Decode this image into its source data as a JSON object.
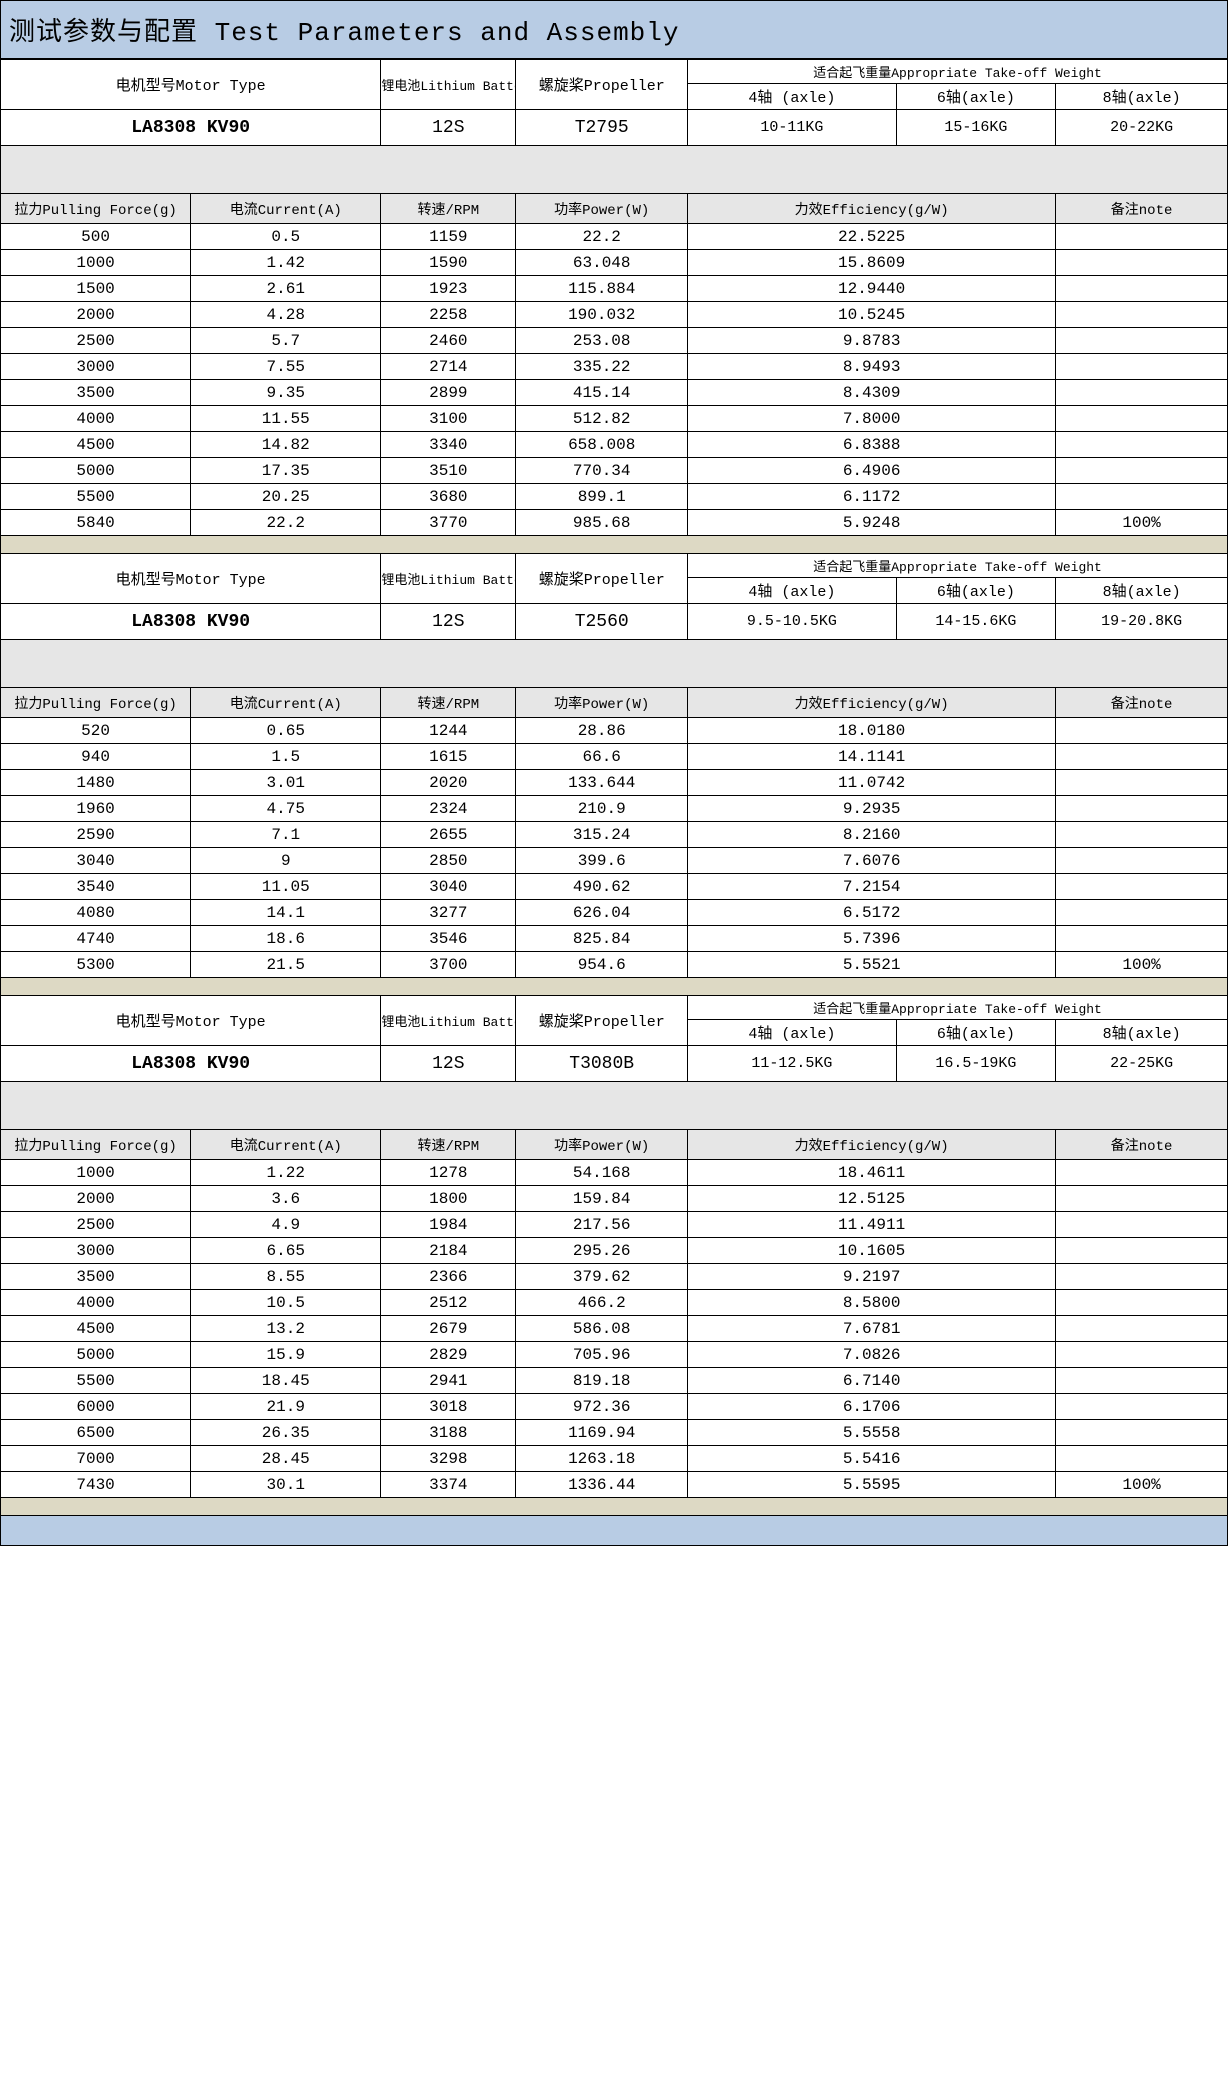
{
  "title": "测试参数与配置 Test Parameters and Assembly",
  "headers": {
    "motor": "电机型号Motor Type",
    "battery": "锂电池Lithium Battery",
    "propeller": "螺旋桨Propeller",
    "takeoff": "适合起飞重量Appropriate Take-off Weight",
    "axle4": "4轴 (axle)",
    "axle6": "6轴(axle)",
    "axle8": "8轴(axle)",
    "pull": "拉力Pulling Force(g)",
    "current": "电流Current(A)",
    "rpm": "转速/RPM",
    "power": "功率Power(W)",
    "eff": "力效Efficiency(g/W)",
    "note": "备注note"
  },
  "sections": [
    {
      "motor": "LA8308 KV90",
      "battery": "12S",
      "propeller": "T2795",
      "axle4": "10-11KG",
      "axle6": "15-16KG",
      "axle8": "20-22KG",
      "rows": [
        [
          "500",
          "0.5",
          "1159",
          "22.2",
          "22.5225",
          ""
        ],
        [
          "1000",
          "1.42",
          "1590",
          "63.048",
          "15.8609",
          ""
        ],
        [
          "1500",
          "2.61",
          "1923",
          "115.884",
          "12.9440",
          ""
        ],
        [
          "2000",
          "4.28",
          "2258",
          "190.032",
          "10.5245",
          ""
        ],
        [
          "2500",
          "5.7",
          "2460",
          "253.08",
          "9.8783",
          ""
        ],
        [
          "3000",
          "7.55",
          "2714",
          "335.22",
          "8.9493",
          ""
        ],
        [
          "3500",
          "9.35",
          "2899",
          "415.14",
          "8.4309",
          ""
        ],
        [
          "4000",
          "11.55",
          "3100",
          "512.82",
          "7.8000",
          ""
        ],
        [
          "4500",
          "14.82",
          "3340",
          "658.008",
          "6.8388",
          ""
        ],
        [
          "5000",
          "17.35",
          "3510",
          "770.34",
          "6.4906",
          ""
        ],
        [
          "5500",
          "20.25",
          "3680",
          "899.1",
          "6.1172",
          ""
        ],
        [
          "5840",
          "22.2",
          "3770",
          "985.68",
          "5.9248",
          "100%"
        ]
      ]
    },
    {
      "motor": "LA8308 KV90",
      "battery": "12S",
      "propeller": "T2560",
      "axle4": "9.5-10.5KG",
      "axle6": "14-15.6KG",
      "axle8": "19-20.8KG",
      "rows": [
        [
          "520",
          "0.65",
          "1244",
          "28.86",
          "18.0180",
          ""
        ],
        [
          "940",
          "1.5",
          "1615",
          "66.6",
          "14.1141",
          ""
        ],
        [
          "1480",
          "3.01",
          "2020",
          "133.644",
          "11.0742",
          ""
        ],
        [
          "1960",
          "4.75",
          "2324",
          "210.9",
          "9.2935",
          ""
        ],
        [
          "2590",
          "7.1",
          "2655",
          "315.24",
          "8.2160",
          ""
        ],
        [
          "3040",
          "9",
          "2850",
          "399.6",
          "7.6076",
          ""
        ],
        [
          "3540",
          "11.05",
          "3040",
          "490.62",
          "7.2154",
          ""
        ],
        [
          "4080",
          "14.1",
          "3277",
          "626.04",
          "6.5172",
          ""
        ],
        [
          "4740",
          "18.6",
          "3546",
          "825.84",
          "5.7396",
          ""
        ],
        [
          "5300",
          "21.5",
          "3700",
          "954.6",
          "5.5521",
          "100%"
        ]
      ]
    },
    {
      "motor": "LA8308 KV90",
      "battery": "12S",
      "propeller": "T3080B",
      "axle4": "11-12.5KG",
      "axle6": "16.5-19KG",
      "axle8": "22-25KG",
      "rows": [
        [
          "1000",
          "1.22",
          "1278",
          "54.168",
          "18.4611",
          ""
        ],
        [
          "2000",
          "3.6",
          "1800",
          "159.84",
          "12.5125",
          ""
        ],
        [
          "2500",
          "4.9",
          "1984",
          "217.56",
          "11.4911",
          ""
        ],
        [
          "3000",
          "6.65",
          "2184",
          "295.26",
          "10.1605",
          ""
        ],
        [
          "3500",
          "8.55",
          "2366",
          "379.62",
          "9.2197",
          ""
        ],
        [
          "4000",
          "10.5",
          "2512",
          "466.2",
          "8.5800",
          ""
        ],
        [
          "4500",
          "13.2",
          "2679",
          "586.08",
          "7.6781",
          ""
        ],
        [
          "5000",
          "15.9",
          "2829",
          "705.96",
          "7.0826",
          ""
        ],
        [
          "5500",
          "18.45",
          "2941",
          "819.18",
          "6.7140",
          ""
        ],
        [
          "6000",
          "21.9",
          "3018",
          "972.36",
          "6.1706",
          ""
        ],
        [
          "6500",
          "26.35",
          "3188",
          "1169.94",
          "5.5558",
          ""
        ],
        [
          "7000",
          "28.45",
          "3298",
          "1263.18",
          "5.5416",
          ""
        ],
        [
          "7430",
          "30.1",
          "3374",
          "1336.44",
          "5.5595",
          "100%"
        ]
      ]
    }
  ],
  "colors": {
    "title_bg": "#b8cce4",
    "spacer_bg": "#e6e6e6",
    "divider_bg": "#ddd9c4",
    "border": "#000000"
  },
  "col_widths_pct": [
    15.5,
    15.5,
    11,
    14,
    17,
    13,
    14
  ]
}
